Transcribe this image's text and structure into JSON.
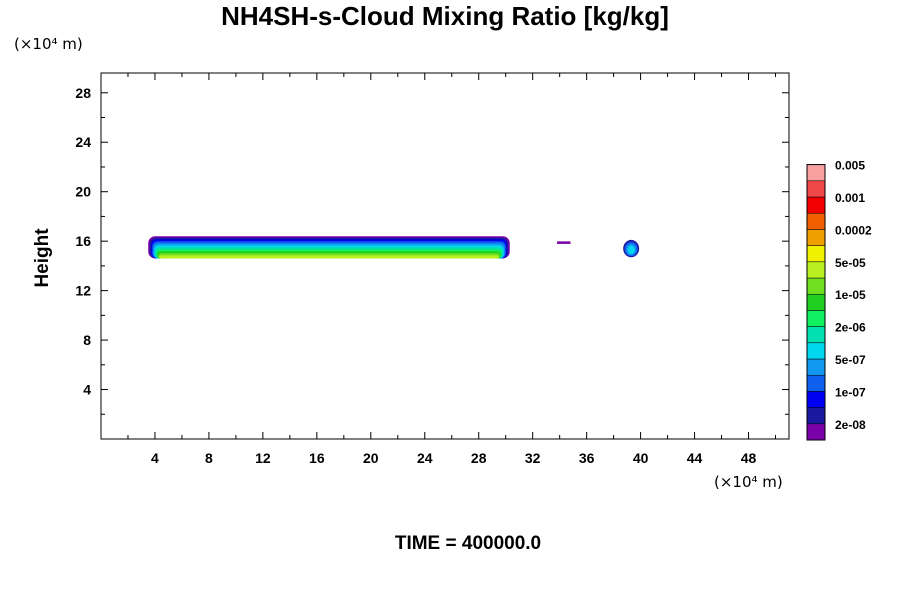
{
  "chart_data": {
    "type": "heatmap",
    "title": "NH4SH-s-Cloud Mixing Ratio [kg/kg]",
    "xlabel": "",
    "ylabel": "Height",
    "x_unit": "(×10⁴ m)",
    "y_unit": "(×10⁴ m)",
    "xlim": [
      0,
      51
    ],
    "ylim": [
      0,
      29.6
    ],
    "x_ticks": [
      4,
      8,
      12,
      16,
      20,
      24,
      28,
      32,
      36,
      40,
      44,
      48
    ],
    "y_ticks": [
      4,
      8,
      12,
      16,
      20,
      24,
      28
    ],
    "footer": "TIME = 400000.0",
    "colorbar": {
      "colors": [
        "#7a00a8",
        "#1a1aa0",
        "#0000f0",
        "#1060f0",
        "#1098f0",
        "#00d8f0",
        "#00e0b0",
        "#10f060",
        "#20d020",
        "#70e020",
        "#b8f020",
        "#f0f000",
        "#f0a000",
        "#f06000",
        "#f00000",
        "#f04848",
        "#f8a0a0"
      ],
      "labels": [
        "2e-08",
        "1e-07",
        "5e-07",
        "2e-06",
        "1e-05",
        "5e-05",
        "0.0002",
        "0.001",
        "0.005"
      ]
    },
    "features": [
      {
        "kind": "main-cloud-band",
        "x_range": [
          3.5,
          30.3
        ],
        "z_range": [
          14.6,
          16.4
        ],
        "peak": "5e-05"
      },
      {
        "kind": "streak",
        "x_range": [
          33.8,
          34.8
        ],
        "z": 15.9,
        "peak": "2e-08"
      },
      {
        "kind": "blob",
        "x_center": 39.3,
        "z_range": [
          14.7,
          16.1
        ],
        "peak": "5e-07"
      }
    ]
  }
}
